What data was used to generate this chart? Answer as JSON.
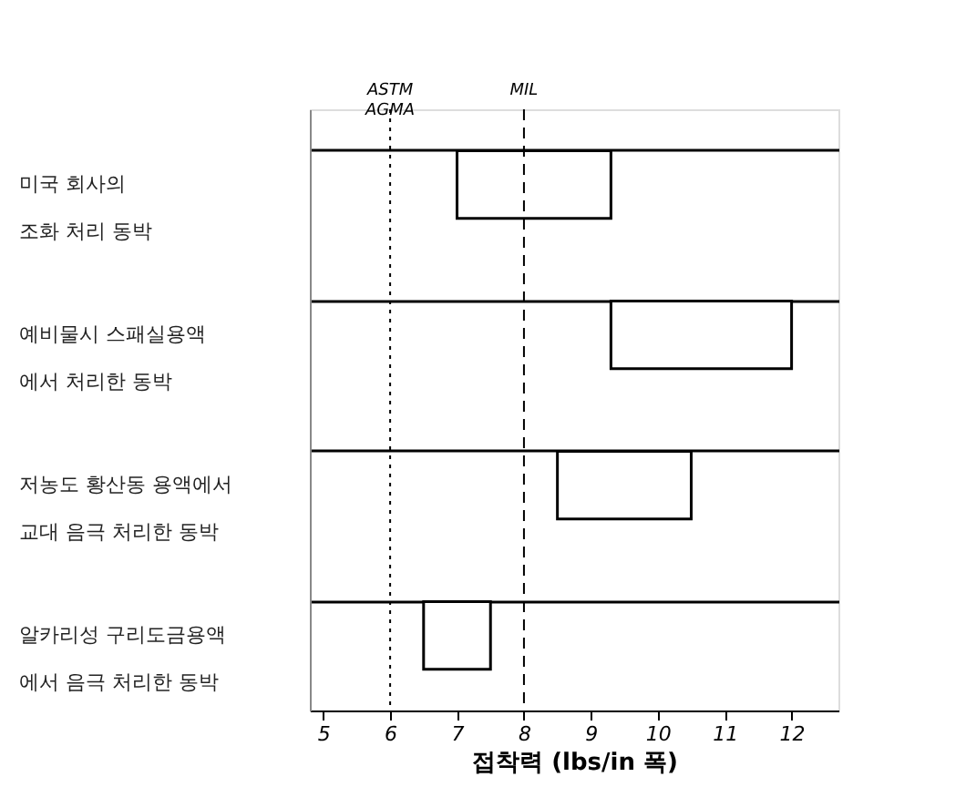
{
  "chart_data": {
    "type": "bar",
    "orientation": "horizontal",
    "xlabel": "접착력 (lbs/in 폭)",
    "categories": [
      "미국 회사의\n조화 처리 동박",
      "예비물시 스패실용액\n에서 처리한 동박",
      "저농도 황산동 용액에서\n교대 음극 처리한 동박",
      "알카리성 구리도금용액\n에서 음극 처리한 동박"
    ],
    "base": [
      7.0,
      9.3,
      8.5,
      6.5
    ],
    "values": [
      2.3,
      2.7,
      2.0,
      1.0
    ],
    "color": "#ffffff",
    "xlim": [
      4.8,
      12.7
    ],
    "xticks": [
      5,
      6,
      7,
      8,
      9,
      10,
      11,
      12
    ],
    "grid": "y",
    "ref_lines": [
      {
        "axis": "x",
        "value": 6,
        "label": "ASTM\nAGMA",
        "line_style": "dotted"
      },
      {
        "axis": "x",
        "value": 8,
        "label": "MIL",
        "line_style": "dashed"
      }
    ]
  }
}
